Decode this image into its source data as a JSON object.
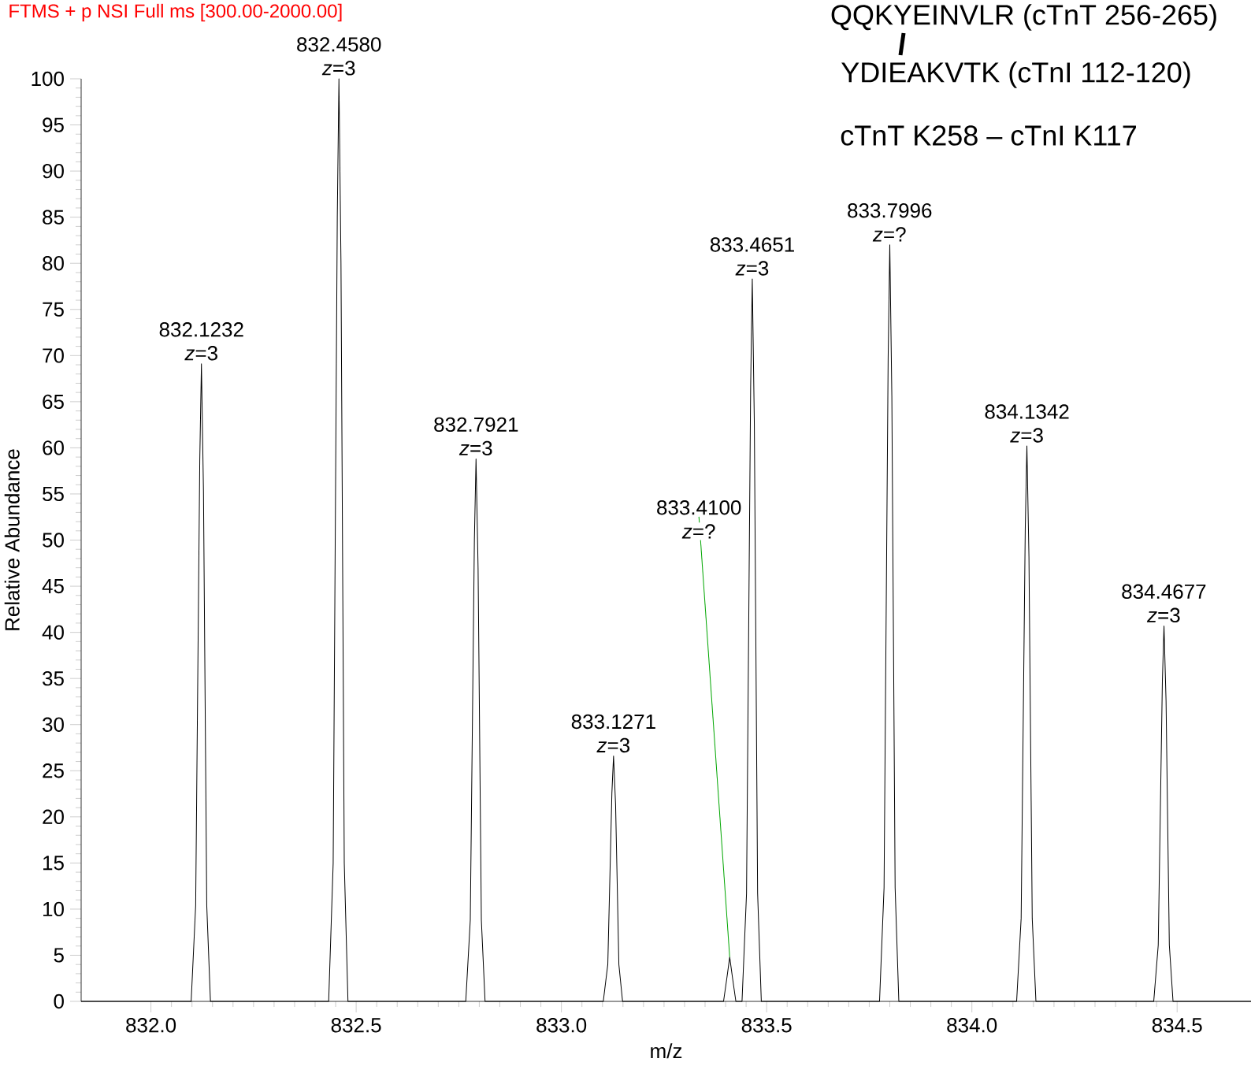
{
  "chart_data": {
    "type": "line",
    "title": "FTMS + p NSI Full ms [300.00-2000.00]",
    "xlabel": "m/z",
    "ylabel": "Relative Abundance",
    "xlim": [
      831.83,
      834.68
    ],
    "ylim": [
      0,
      100
    ],
    "xticks": [
      {
        "value": 832.0,
        "label": "832.0"
      },
      {
        "value": 832.5,
        "label": "832.5"
      },
      {
        "value": 833.0,
        "label": "833.0"
      },
      {
        "value": 833.5,
        "label": "833.5"
      },
      {
        "value": 834.0,
        "label": "834.0"
      },
      {
        "value": 834.5,
        "label": "834.5"
      }
    ],
    "yticks": [
      0,
      5,
      10,
      15,
      20,
      25,
      30,
      35,
      40,
      45,
      50,
      55,
      60,
      65,
      70,
      75,
      80,
      85,
      90,
      95,
      100
    ],
    "grid": false,
    "marker": "none",
    "line_style": "solid",
    "series": [
      {
        "color": "#000000",
        "x": [
          831.83,
          832.098,
          832.109,
          832.119,
          832.123,
          832.128,
          832.136,
          832.145,
          832.433,
          832.444,
          832.454,
          832.458,
          832.463,
          832.471,
          832.48,
          832.767,
          832.778,
          832.788,
          832.792,
          832.797,
          832.805,
          832.814,
          833.102,
          833.113,
          833.123,
          833.127,
          833.132,
          833.14,
          833.149,
          833.395,
          833.403,
          833.41,
          833.417,
          833.425,
          833.44,
          833.451,
          833.461,
          833.465,
          833.47,
          833.478,
          833.487,
          833.775,
          833.786,
          833.796,
          833.8,
          833.805,
          833.813,
          833.822,
          834.109,
          834.12,
          834.13,
          834.134,
          834.139,
          834.147,
          834.156,
          834.443,
          834.454,
          834.464,
          834.468,
          834.473,
          834.481,
          834.49,
          834.68
        ],
        "values": [
          0,
          0,
          10.4,
          58.7,
          69.1,
          55.3,
          10.4,
          0,
          0,
          15,
          85,
          100,
          80,
          15,
          0,
          0,
          8.8,
          50,
          58.8,
          47,
          8.8,
          0,
          0,
          4,
          22.6,
          26.6,
          21.3,
          4,
          0,
          0,
          2.5,
          4.8,
          2.5,
          0,
          0,
          11.7,
          66.6,
          78.3,
          62.6,
          11.7,
          0,
          0,
          12.3,
          69.7,
          82,
          65.6,
          12.3,
          0,
          0,
          9,
          51.2,
          60.2,
          48.2,
          9,
          0,
          0,
          6.1,
          34.6,
          40.7,
          32.6,
          6.1,
          0,
          0
        ]
      }
    ],
    "annotations": [
      "QQKYEINVLR (cTnT 256-265)",
      "YDIEAKVTK (cTnI 112-120)",
      "cTnT K258 – cTnI K117",
      {
        "text": "832.1232",
        "x": 832.1232,
        "y": 69.1
      },
      {
        "text": "*z*=3",
        "x": 832.1232,
        "y": 69.1
      },
      {
        "text": "832.4580",
        "x": 832.458,
        "y": 100
      },
      {
        "text": "*z*=3",
        "x": 832.458,
        "y": 100
      },
      {
        "text": "832.7921",
        "x": 832.7921,
        "y": 58.8
      },
      {
        "text": "*z*=3",
        "x": 832.7921,
        "y": 58.8
      },
      {
        "text": "833.1271",
        "x": 833.1271,
        "y": 26.6
      },
      {
        "text": "*z*=3",
        "x": 833.1271,
        "y": 26.6
      },
      {
        "text": "833.4100",
        "x": 833.41,
        "y": 4.8
      },
      {
        "text": "*z*=?",
        "x": 833.41,
        "y": 4.8
      },
      {
        "text": "833.4651",
        "x": 833.4651,
        "y": 78.3
      },
      {
        "text": "*z*=3",
        "x": 833.4651,
        "y": 78.3
      },
      {
        "text": "833.7996",
        "x": 833.7996,
        "y": 82
      },
      {
        "text": "*z*=?",
        "x": 833.7996,
        "y": 82
      },
      {
        "text": "834.1342",
        "x": 834.1342,
        "y": 60.2
      },
      {
        "text": "*z*=3",
        "x": 834.1342,
        "y": 60.2
      },
      {
        "text": "834.4677",
        "x": 834.4677,
        "y": 40.7
      },
      {
        "text": "*z*=3",
        "x": 834.4677,
        "y": 40.7
      }
    ]
  }
}
